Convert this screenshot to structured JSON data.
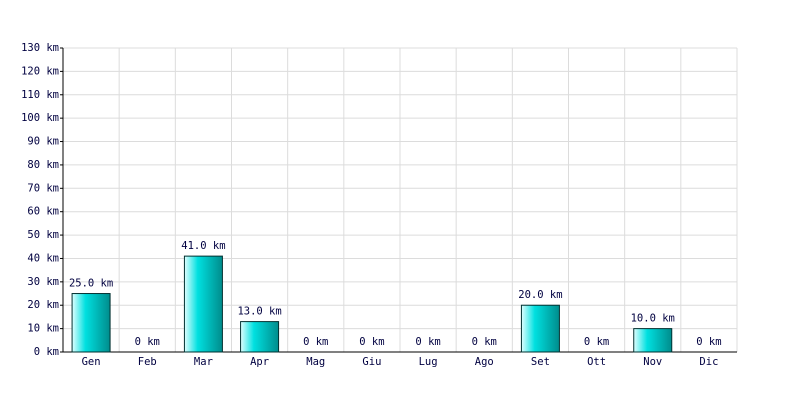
{
  "chart_data": {
    "type": "bar",
    "categories": [
      "Gen",
      "Feb",
      "Mar",
      "Apr",
      "Mag",
      "Giu",
      "Lug",
      "Ago",
      "Set",
      "Ott",
      "Nov",
      "Dic"
    ],
    "values": [
      25,
      0,
      41,
      13,
      0,
      0,
      0,
      0,
      20,
      0,
      10,
      0
    ],
    "value_labels": [
      "25.0 km",
      "0 km",
      "41.0 km",
      "13.0 km",
      "0 km",
      "0 km",
      "0 km",
      "0 km",
      "20.0 km",
      "0 km",
      "10.0 km",
      "0 km"
    ],
    "color": "#00c8c8",
    "ylim": [
      0,
      130
    ],
    "yticks": [
      {
        "value": 0,
        "label": "0 km"
      },
      {
        "value": 10,
        "label": "10 km"
      },
      {
        "value": 20,
        "label": "20 km"
      },
      {
        "value": 30,
        "label": "30 km"
      },
      {
        "value": 40,
        "label": "40 km"
      },
      {
        "value": 50,
        "label": "50 km"
      },
      {
        "value": 60,
        "label": "60 km"
      },
      {
        "value": 70,
        "label": "70 km"
      },
      {
        "value": 80,
        "label": "80 km"
      },
      {
        "value": 90,
        "label": "90 km"
      },
      {
        "value": 100,
        "label": "100 km"
      },
      {
        "value": 110,
        "label": "110 km"
      },
      {
        "value": 120,
        "label": "120 km"
      },
      {
        "value": 130,
        "label": "130 km"
      }
    ],
    "grid": true
  }
}
